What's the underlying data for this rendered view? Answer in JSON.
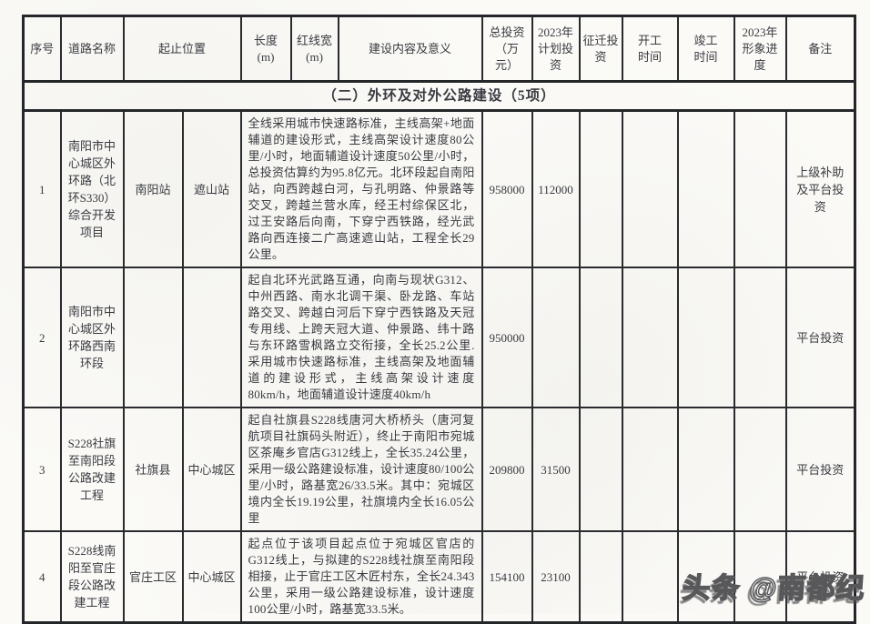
{
  "page": {
    "watermark_text": "头条 @南都纪"
  },
  "table": {
    "header": {
      "serial": "序号",
      "road_name": "道路名称",
      "location": "起止位置",
      "length": "长度\n(m)",
      "red_line_width": "红线宽\n(m)",
      "content": "建设内容及意义",
      "total_investment": "总投资\n（万\n元）",
      "planned_2023": "2023年\n计划投\n资",
      "relocation": "征迁投\n资",
      "start_time": "开工\n时间",
      "completion_time": "竣工\n时间",
      "progress_2023": "2023年\n形象进\n度",
      "remarks": "备注"
    },
    "section_title": "（二）外环及对外公路建设（5项）",
    "rows": [
      {
        "no": "1",
        "name": "南阳市中心城区外环路（北环S330）综合开发项目",
        "loc_from": "南阳站",
        "loc_to": "遮山站",
        "content": "全线采用城市快速路标准，主线高架+地面辅道的建设形式，主线高架设计速度80公里/小时，地面辅道设计速度50公里/小时，总投资估算约为95.8亿元。北环段起自南阳站，向西跨越白河，与孔明路、仲景路等交叉，跨越兰营水库，经王村综保区北，过王安路后向南，下穿宁西铁路，经光武路向西连接二广高速遮山站，工程全长29公里。",
        "total_investment": "958000",
        "planned_2023": "112000",
        "relocation": "",
        "start_time": "",
        "end_time": "",
        "progress_2023": "",
        "remarks": "上级补助及平台投资"
      },
      {
        "no": "2",
        "name": "南阳市中心城区外环路西南环段",
        "loc_from": "",
        "loc_to": "",
        "content": "起自北环光武路互通，向南与现状G312、中州西路、南水北调干渠、卧龙路、车站路交叉、跨越白河后下穿宁西铁路及天冠专用线、上跨天冠大道、仲景路、纬十路与东环路雪枫路立交衔接，全长25.2公里.采用城市快速路标准，主线高架及地面辅道的建设形式，主线高架设计速度80km/h，地面辅道设计速度40km/h",
        "total_investment": "950000",
        "planned_2023": "",
        "relocation": "",
        "start_time": "",
        "end_time": "",
        "progress_2023": "",
        "remarks": "平台投资"
      },
      {
        "no": "3",
        "name": "S228社旗至南阳段公路改建工程",
        "loc_from": "社旗县",
        "loc_to": "中心城区",
        "content": "起自社旗县S228线唐河大桥桥头（唐河复航项目社旗码头附近），终止于南阳市宛城区茶庵乡官店G312线上，全长35.24公里，采用一级公路建设标准，设计速度80/100公里/小时，路基宽26/33.5米。其中：宛城区境内全长19.19公里，社旗境内全长16.05公里",
        "total_investment": "209800",
        "planned_2023": "31500",
        "relocation": "",
        "start_time": "",
        "end_time": "",
        "progress_2023": "",
        "remarks": "平台投资"
      },
      {
        "no": "4",
        "name": "S228线南阳至官庄段公路改建工程",
        "loc_from": "官庄工区",
        "loc_to": "中心城区",
        "content": "起点位于该项目起点位于宛城区官店的G312线上，与拟建的S228线社旗至南阳段相接，止于官庄工区木匠村东，全长24.343公里，采用一级公路建设标准，设计速度100公里/小时，路基宽33.5米。",
        "total_investment": "154100",
        "planned_2023": "23100",
        "relocation": "",
        "start_time": "",
        "end_time": "",
        "progress_2023": "",
        "remarks": "平台投资"
      }
    ]
  }
}
